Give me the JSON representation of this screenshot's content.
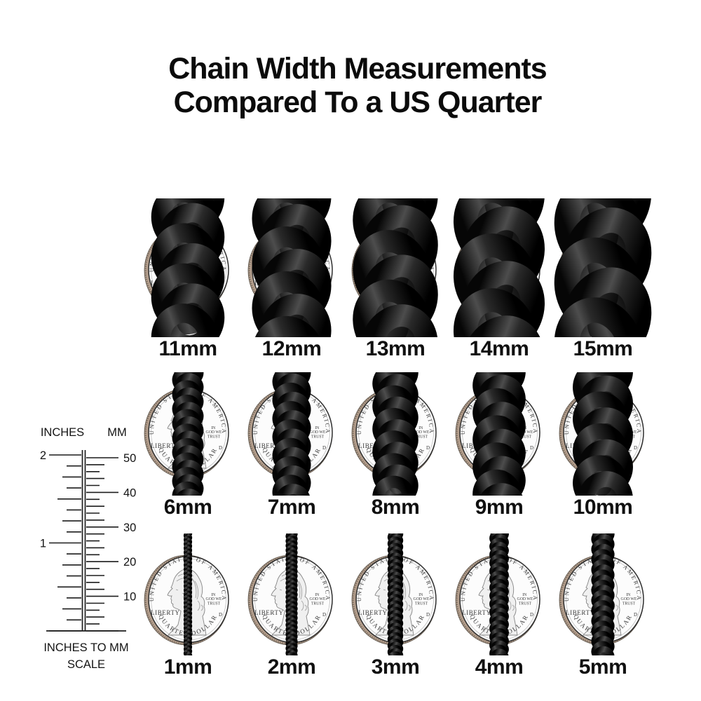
{
  "title": {
    "line1": "Chain Width Measurements",
    "line2": "Compared To a US Quarter"
  },
  "ruler": {
    "left_label": "INCHES",
    "right_label": "MM",
    "inch_tick_labels": [
      "2",
      "1"
    ],
    "mm_tick_labels": [
      "50",
      "40",
      "30",
      "20",
      "10"
    ],
    "caption_line1": "INCHES TO MM",
    "caption_line2": "SCALE"
  },
  "coin": {
    "top_text": "UNITED STATES OF AMERICA",
    "left_text": "LIBERTY",
    "motto_lines": [
      "IN",
      "GOD WE",
      "TRUST"
    ],
    "bottom_text": "QUARTER DOLLAR",
    "mint_mark": "D"
  },
  "rows": [
    {
      "items": [
        {
          "label": "11mm",
          "mm": 11
        },
        {
          "label": "12mm",
          "mm": 12
        },
        {
          "label": "13mm",
          "mm": 13
        },
        {
          "label": "14mm",
          "mm": 14
        },
        {
          "label": "15mm",
          "mm": 15
        }
      ]
    },
    {
      "items": [
        {
          "label": "6mm",
          "mm": 6
        },
        {
          "label": "7mm",
          "mm": 7
        },
        {
          "label": "8mm",
          "mm": 8
        },
        {
          "label": "9mm",
          "mm": 9
        },
        {
          "label": "10mm",
          "mm": 10
        }
      ]
    },
    {
      "items": [
        {
          "label": "1mm",
          "mm": 1
        },
        {
          "label": "2mm",
          "mm": 2
        },
        {
          "label": "3mm",
          "mm": 3
        },
        {
          "label": "4mm",
          "mm": 4
        },
        {
          "label": "5mm",
          "mm": 5
        }
      ]
    }
  ],
  "colors": {
    "chain_dark": "#060606",
    "chain_highlight": "#4d4d4d",
    "coin_face": "#fcfcfc",
    "coin_edge": "#b49e8c",
    "coin_rim": "#2e2e2e",
    "text": "#0b0b0b"
  }
}
